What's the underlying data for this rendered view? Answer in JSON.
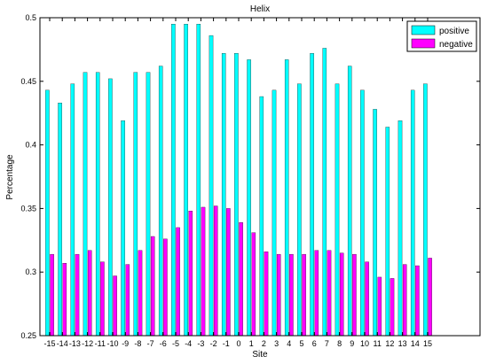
{
  "chart_data": {
    "type": "bar",
    "title": "Helix",
    "xlabel": "Site",
    "ylabel": "Percentage",
    "ylim": [
      0.25,
      0.5
    ],
    "yticks": [
      "0.25",
      "0.3",
      "0.35",
      "0.4",
      "0.45",
      "0.5"
    ],
    "categories": [
      "-15",
      "-14",
      "-13",
      "-12",
      "-11",
      "-10",
      "-9",
      "-8",
      "-7",
      "-6",
      "-5",
      "-4",
      "-3",
      "-2",
      "-1",
      "0",
      "1",
      "2",
      "3",
      "4",
      "5",
      "6",
      "7",
      "8",
      "9",
      "10",
      "11",
      "12",
      "13",
      "14",
      "15"
    ],
    "series": [
      {
        "name": "positive",
        "color": "#00FFFF",
        "values": [
          0.443,
          0.433,
          0.448,
          0.457,
          0.457,
          0.452,
          0.419,
          0.457,
          0.457,
          0.462,
          0.495,
          0.495,
          0.495,
          0.486,
          0.472,
          0.472,
          0.467,
          0.438,
          0.443,
          0.467,
          0.448,
          0.472,
          0.476,
          0.448,
          0.462,
          0.443,
          0.428,
          0.414,
          0.419,
          0.443,
          0.448
        ]
      },
      {
        "name": "negative",
        "color": "#FF00FF",
        "values": [
          0.314,
          0.307,
          0.314,
          0.317,
          0.308,
          0.297,
          0.306,
          0.317,
          0.328,
          0.326,
          0.335,
          0.348,
          0.351,
          0.352,
          0.35,
          0.339,
          0.331,
          0.316,
          0.314,
          0.314,
          0.314,
          0.317,
          0.317,
          0.315,
          0.314,
          0.308,
          0.296,
          0.295,
          0.306,
          0.305,
          0.311
        ]
      }
    ],
    "legend_position": "top-right",
    "grid": false
  }
}
